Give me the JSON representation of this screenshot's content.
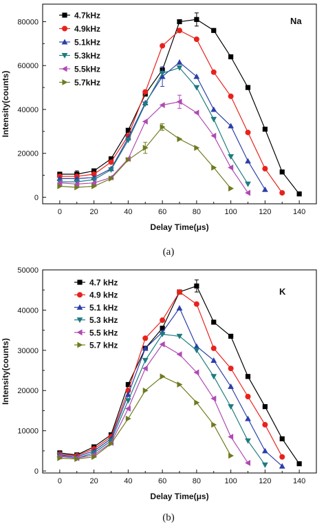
{
  "chart_data": [
    {
      "type": "line",
      "panel_label": "Na",
      "caption": "(a)",
      "xlabel": "Delay Time(μs)",
      "ylabel": "Intensity(counts)",
      "xlim": [
        -10,
        150
      ],
      "ylim": [
        -3000,
        88000
      ],
      "xticks": [
        0,
        20,
        40,
        60,
        80,
        100,
        120,
        140
      ],
      "yticks": [
        0,
        20000,
        40000,
        60000,
        80000
      ],
      "legend_position": "top-left",
      "series": [
        {
          "name": "4.7kHz",
          "marker": "square",
          "color": "#000000",
          "x": [
            0,
            10,
            20,
            30,
            40,
            50,
            60,
            70,
            80,
            90,
            100,
            110,
            120,
            130,
            140
          ],
          "y": [
            10500,
            10500,
            12000,
            17500,
            30500,
            47000,
            58000,
            80000,
            81000,
            76000,
            64000,
            50000,
            31000,
            11500,
            1500
          ],
          "err": [
            0,
            1500,
            0,
            0,
            0,
            0,
            0,
            0,
            3000,
            0,
            0,
            0,
            0,
            0,
            0
          ]
        },
        {
          "name": "4.9kHz",
          "marker": "circle",
          "color": "#e8221b",
          "x": [
            0,
            10,
            20,
            30,
            40,
            50,
            60,
            70,
            80,
            90,
            100,
            110,
            120,
            130
          ],
          "y": [
            9500,
            9500,
            10500,
            16000,
            28000,
            48000,
            69000,
            76000,
            72000,
            57000,
            46000,
            29500,
            13000,
            2000
          ],
          "err": [
            0,
            0,
            0,
            0,
            0,
            0,
            0,
            0,
            0,
            0,
            0,
            0,
            0,
            0
          ]
        },
        {
          "name": "5.1kHz",
          "marker": "triangle-up",
          "color": "#2c3fa8",
          "x": [
            0,
            10,
            20,
            30,
            40,
            50,
            60,
            70,
            80,
            90,
            100,
            110,
            120
          ],
          "y": [
            8500,
            8500,
            9000,
            13000,
            27000,
            43000,
            55000,
            61500,
            55000,
            40000,
            32500,
            16500,
            3500
          ],
          "err": [
            0,
            0,
            0,
            0,
            0,
            0,
            4500,
            0,
            0,
            0,
            0,
            0,
            0
          ]
        },
        {
          "name": "5.3kHz",
          "marker": "triangle-down",
          "color": "#1e7b80",
          "x": [
            0,
            10,
            20,
            30,
            40,
            50,
            60,
            70,
            80,
            90,
            100,
            110
          ],
          "y": [
            7000,
            7000,
            8000,
            12500,
            26000,
            42500,
            56500,
            59000,
            50000,
            35500,
            18500,
            6000
          ],
          "err": [
            0,
            0,
            0,
            0,
            0,
            0,
            0,
            0,
            0,
            0,
            0,
            0
          ]
        },
        {
          "name": "5.5kHz",
          "marker": "triangle-left",
          "color": "#b04ab4",
          "x": [
            0,
            10,
            20,
            30,
            40,
            50,
            60,
            70,
            80,
            90,
            100,
            110
          ],
          "y": [
            6500,
            6000,
            6500,
            9000,
            17500,
            34500,
            42000,
            43500,
            38500,
            28000,
            13500,
            2000
          ],
          "err": [
            0,
            0,
            0,
            0,
            0,
            0,
            0,
            3000,
            0,
            0,
            0,
            0
          ]
        },
        {
          "name": "5.7kHz",
          "marker": "triangle-right",
          "color": "#707a1e",
          "x": [
            0,
            10,
            20,
            30,
            40,
            50,
            60,
            70,
            80,
            90,
            100
          ],
          "y": [
            5000,
            4500,
            5000,
            8500,
            17000,
            22500,
            32000,
            26500,
            22500,
            13500,
            4000
          ],
          "err": [
            0,
            0,
            0,
            0,
            0,
            2500,
            1500,
            0,
            0,
            0,
            0
          ]
        }
      ]
    },
    {
      "type": "line",
      "panel_label": "K",
      "caption": "(b)",
      "xlabel": "Delay Time(μs)",
      "ylabel": "Intensity(counts)",
      "xlim": [
        -10,
        150
      ],
      "ylim": [
        -500,
        50000
      ],
      "xticks": [
        0,
        20,
        40,
        60,
        80,
        100,
        120,
        140
      ],
      "yticks": [
        0,
        10000,
        20000,
        30000,
        40000,
        50000
      ],
      "legend_position": "top-left",
      "series": [
        {
          "name": "4.7 kHz",
          "marker": "square",
          "color": "#000000",
          "x": [
            0,
            10,
            20,
            30,
            40,
            50,
            60,
            70,
            80,
            90,
            100,
            110,
            120,
            130,
            140
          ],
          "y": [
            4500,
            4000,
            6000,
            9000,
            21500,
            30500,
            35500,
            44500,
            46000,
            37000,
            33500,
            23500,
            16000,
            8000,
            1800
          ],
          "err": [
            0,
            0,
            0,
            0,
            0,
            0,
            0,
            0,
            1500,
            0,
            0,
            0,
            0,
            0,
            0
          ]
        },
        {
          "name": "4.9 kHz",
          "marker": "circle",
          "color": "#e8221b",
          "x": [
            0,
            10,
            20,
            30,
            40,
            50,
            60,
            70,
            80,
            90,
            100,
            110,
            120,
            130
          ],
          "y": [
            4200,
            3800,
            5500,
            8500,
            20000,
            33000,
            37500,
            44500,
            41500,
            30500,
            25500,
            18500,
            11500,
            3500
          ],
          "err": [
            0,
            0,
            0,
            0,
            0,
            0,
            0,
            0,
            0,
            0,
            0,
            0,
            0,
            0
          ]
        },
        {
          "name": "5.1 kHz",
          "marker": "triangle-up",
          "color": "#2c3fa8",
          "x": [
            0,
            10,
            20,
            30,
            40,
            50,
            60,
            70,
            80,
            90,
            100,
            110,
            120,
            130
          ],
          "y": [
            4000,
            3500,
            5000,
            8000,
            19000,
            30500,
            34500,
            40500,
            31000,
            27500,
            21000,
            13000,
            5000,
            1200
          ],
          "err": [
            0,
            0,
            0,
            0,
            0,
            0,
            0,
            0,
            0,
            0,
            0,
            0,
            0,
            0
          ]
        },
        {
          "name": "5.3 kHz",
          "marker": "triangle-down",
          "color": "#1e7b80",
          "x": [
            0,
            10,
            20,
            30,
            40,
            50,
            60,
            70,
            80,
            90,
            100,
            110,
            120
          ],
          "y": [
            3800,
            3200,
            4500,
            7500,
            17500,
            27500,
            34000,
            33500,
            30000,
            23500,
            16000,
            7500,
            1500
          ],
          "err": [
            0,
            0,
            0,
            0,
            0,
            0,
            0,
            0,
            0,
            0,
            0,
            0,
            0
          ]
        },
        {
          "name": "5.5 kHz",
          "marker": "triangle-left",
          "color": "#b04ab4",
          "x": [
            0,
            10,
            20,
            30,
            40,
            50,
            60,
            70,
            80,
            90,
            100,
            110
          ],
          "y": [
            3600,
            3200,
            4000,
            7000,
            15500,
            25500,
            31500,
            29000,
            24500,
            18000,
            8500,
            2000
          ],
          "err": [
            0,
            0,
            0,
            0,
            0,
            0,
            0,
            0,
            0,
            0,
            0,
            0
          ]
        },
        {
          "name": "5.7 kHz",
          "marker": "triangle-right",
          "color": "#707a1e",
          "x": [
            0,
            10,
            20,
            30,
            40,
            50,
            60,
            70,
            80,
            90,
            100
          ],
          "y": [
            3200,
            3000,
            3500,
            6800,
            13000,
            20000,
            23500,
            21500,
            17000,
            11500,
            3800
          ],
          "err": [
            0,
            0,
            0,
            0,
            0,
            0,
            0,
            0,
            0,
            0,
            0
          ]
        }
      ]
    }
  ]
}
